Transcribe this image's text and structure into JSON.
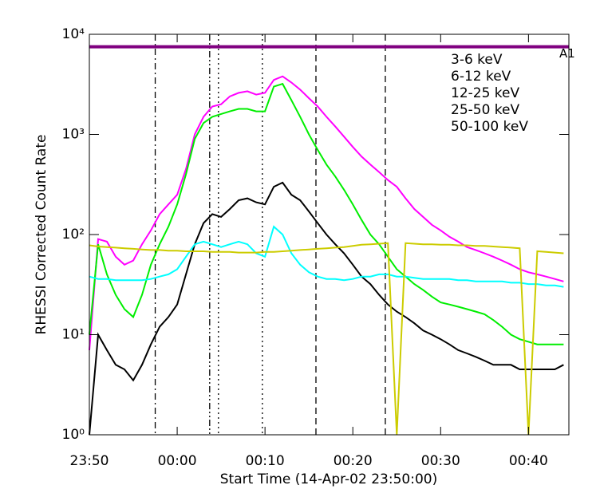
{
  "chart_data": {
    "type": "line",
    "xlabel": "Start Time (14-Apr-02 23:50:00)",
    "ylabel": "RHESSI Corrected Count Rate",
    "log_y": true,
    "xlim": [
      0,
      54.6
    ],
    "xticks": [
      {
        "value": 0,
        "label": "23:50"
      },
      {
        "value": 10,
        "label": "00:00"
      },
      {
        "value": 20,
        "label": "00:10"
      },
      {
        "value": 30,
        "label": "00:20"
      },
      {
        "value": 40,
        "label": "00:30"
      },
      {
        "value": 50,
        "label": "00:40"
      }
    ],
    "ylim": [
      1,
      10000
    ],
    "yticks": [
      {
        "value": 1,
        "label": "10⁰"
      },
      {
        "value": 10,
        "label": "10¹"
      },
      {
        "value": 100,
        "label": "10²"
      },
      {
        "value": 1000,
        "label": "10³"
      },
      {
        "value": 10000,
        "label": "10⁴"
      }
    ],
    "x": [
      0,
      1,
      2,
      3,
      4,
      5,
      6,
      7,
      8,
      9,
      10,
      11,
      12,
      13,
      14,
      15,
      16,
      17,
      18,
      19,
      20,
      21,
      22,
      23,
      24,
      25,
      26,
      27,
      28,
      29,
      30,
      31,
      32,
      33,
      34,
      35,
      36,
      37,
      38,
      39,
      40,
      41,
      42,
      43,
      44,
      45,
      46,
      47,
      48,
      49,
      50,
      51,
      52,
      53,
      54
    ],
    "series": [
      {
        "name": "3-6 keV",
        "color": "#000000",
        "values": [
          1,
          10,
          7,
          5,
          4.5,
          3.5,
          5,
          8,
          12,
          15,
          20,
          40,
          80,
          130,
          160,
          150,
          180,
          220,
          230,
          210,
          200,
          300,
          330,
          250,
          220,
          170,
          130,
          100,
          80,
          65,
          50,
          38,
          32,
          25,
          20,
          17,
          15,
          13,
          11,
          10,
          9,
          8,
          7,
          6.5,
          6,
          5.5,
          5,
          5,
          5,
          4.5,
          4.5,
          4.5,
          4.5,
          4.5,
          5
        ]
      },
      {
        "name": "6-12 keV",
        "color": "#ff00ff",
        "values": [
          7,
          90,
          85,
          60,
          50,
          55,
          80,
          110,
          160,
          200,
          250,
          450,
          1000,
          1500,
          1900,
          2000,
          2400,
          2600,
          2700,
          2500,
          2600,
          3500,
          3800,
          3300,
          2800,
          2300,
          1900,
          1500,
          1200,
          950,
          750,
          600,
          500,
          420,
          350,
          300,
          230,
          180,
          150,
          125,
          110,
          95,
          85,
          75,
          70,
          65,
          60,
          55,
          50,
          45,
          42,
          40,
          38,
          36,
          34
        ]
      },
      {
        "name": "12-25 keV",
        "color": "#00ee00",
        "values": [
          10,
          80,
          40,
          25,
          18,
          15,
          25,
          50,
          80,
          120,
          200,
          400,
          900,
          1300,
          1500,
          1600,
          1700,
          1800,
          1800,
          1700,
          1700,
          3000,
          3200,
          2200,
          1500,
          1000,
          700,
          500,
          380,
          280,
          200,
          140,
          100,
          80,
          60,
          45,
          38,
          32,
          28,
          24,
          21,
          20,
          19,
          18,
          17,
          16,
          14,
          12,
          10,
          9,
          8.5,
          8,
          8,
          8,
          8
        ]
      },
      {
        "name": "25-50 keV",
        "color": "#00ffff",
        "values": [
          38,
          36,
          36,
          35,
          35,
          35,
          35,
          36,
          38,
          40,
          45,
          60,
          80,
          85,
          80,
          75,
          80,
          85,
          80,
          65,
          60,
          120,
          100,
          65,
          50,
          42,
          38,
          36,
          36,
          35,
          36,
          38,
          38,
          40,
          40,
          38,
          38,
          37,
          36,
          36,
          36,
          36,
          35,
          35,
          34,
          34,
          34,
          34,
          33,
          33,
          32,
          32,
          31,
          31,
          30
        ]
      },
      {
        "name": "50-100 keV",
        "color": "#cccc00",
        "values": [
          78,
          76,
          75,
          74,
          73,
          72,
          71,
          70,
          70,
          69,
          69,
          68,
          68,
          68,
          67,
          67,
          67,
          66,
          66,
          66,
          67,
          67,
          68,
          69,
          70,
          71,
          72,
          73,
          74,
          75,
          77,
          79,
          80,
          81,
          82,
          1,
          82,
          81,
          80,
          80,
          79,
          79,
          78,
          78,
          77,
          77,
          76,
          75,
          74,
          73,
          1,
          68,
          67,
          66,
          65
        ]
      }
    ],
    "attenuator": {
      "label": "A1",
      "value": 7500,
      "color": "#800080"
    },
    "vlines": [
      {
        "x": 7.5,
        "dash": "8 4 2 4"
      },
      {
        "x": 13.7,
        "dash": "8 3 2 3 2 3"
      },
      {
        "x": 14.7,
        "dash": "2 4"
      },
      {
        "x": 19.7,
        "dash": "2 4"
      },
      {
        "x": 25.8,
        "dash": "8 5"
      },
      {
        "x": 33.7,
        "dash": "8 5"
      }
    ]
  }
}
